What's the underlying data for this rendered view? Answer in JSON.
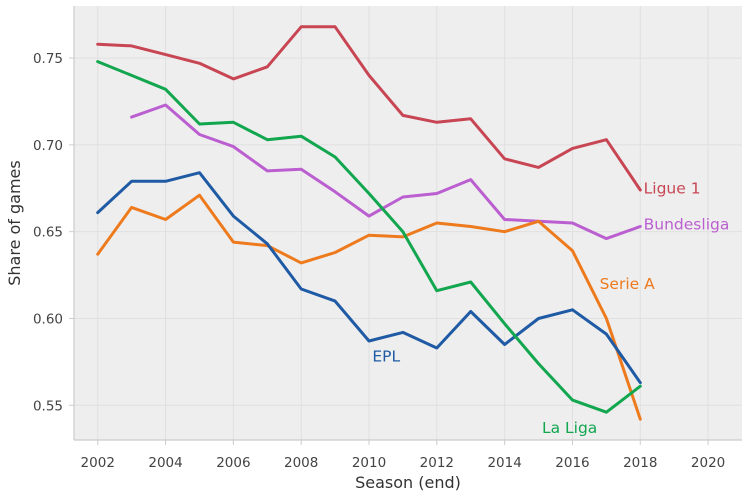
{
  "chart_data": {
    "type": "line",
    "xlabel": "Season (end)",
    "ylabel": "Share of games",
    "xlim": [
      2001.3,
      2021
    ],
    "ylim": [
      0.53,
      0.78
    ],
    "x_ticks": [
      2002,
      2004,
      2006,
      2008,
      2010,
      2012,
      2014,
      2016,
      2018,
      2020
    ],
    "y_ticks": [
      0.55,
      0.6,
      0.65,
      0.7,
      0.75
    ],
    "grid": true,
    "legend": "none (series labelled inline)",
    "colors": {
      "Ligue 1": "#c84654",
      "Bundesliga": "#bb5fd0",
      "Serie A": "#ee7a1e",
      "EPL": "#1f5aa4",
      "La Liga": "#12a64f",
      "background": "#eeeeee",
      "grid": "#e0e0e0"
    },
    "series": [
      {
        "name": "Ligue 1",
        "x": [
          2002,
          2003,
          2004,
          2005,
          2006,
          2007,
          2008,
          2009,
          2010,
          2011,
          2012,
          2013,
          2014,
          2015,
          2016,
          2017,
          2018
        ],
        "values": [
          0.758,
          0.757,
          0.752,
          0.747,
          0.738,
          0.745,
          0.768,
          0.768,
          0.74,
          0.717,
          0.713,
          0.715,
          0.692,
          0.687,
          0.698,
          0.703,
          0.674
        ],
        "label": "Ligue 1",
        "label_at": [
          2018.1,
          0.675
        ]
      },
      {
        "name": "Bundesliga",
        "x": [
          2003,
          2004,
          2005,
          2006,
          2007,
          2008,
          2009,
          2010,
          2011,
          2012,
          2013,
          2014,
          2015,
          2016,
          2017,
          2018
        ],
        "values": [
          0.716,
          0.723,
          0.706,
          0.699,
          0.685,
          0.686,
          0.673,
          0.659,
          0.67,
          0.672,
          0.68,
          0.657,
          0.656,
          0.655,
          0.646,
          0.653
        ],
        "label": "Bundesliga",
        "label_at": [
          2018.1,
          0.654
        ]
      },
      {
        "name": "Serie A",
        "x": [
          2002,
          2003,
          2004,
          2005,
          2006,
          2007,
          2008,
          2009,
          2010,
          2011,
          2012,
          2013,
          2014,
          2015,
          2016,
          2017,
          2018
        ],
        "values": [
          0.637,
          0.664,
          0.657,
          0.671,
          0.644,
          0.642,
          0.632,
          0.638,
          0.648,
          0.647,
          0.655,
          0.653,
          0.65,
          0.656,
          0.639,
          0.6,
          0.542
        ],
        "label": "Serie A",
        "label_at": [
          2016.8,
          0.62
        ]
      },
      {
        "name": "EPL",
        "x": [
          2002,
          2003,
          2004,
          2005,
          2006,
          2007,
          2008,
          2009,
          2010,
          2011,
          2012,
          2013,
          2014,
          2015,
          2016,
          2017,
          2018
        ],
        "values": [
          0.661,
          0.679,
          0.679,
          0.684,
          0.659,
          0.643,
          0.617,
          0.61,
          0.587,
          0.592,
          0.583,
          0.604,
          0.585,
          0.6,
          0.605,
          0.591,
          0.563
        ],
        "label": "EPL",
        "label_at": [
          2010.1,
          0.578
        ]
      },
      {
        "name": "La Liga",
        "x": [
          2002,
          2003,
          2004,
          2005,
          2006,
          2007,
          2008,
          2009,
          2010,
          2011,
          2012,
          2013,
          2014,
          2015,
          2016,
          2017,
          2018
        ],
        "values": [
          0.748,
          0.74,
          0.732,
          0.712,
          0.713,
          0.703,
          0.705,
          0.693,
          0.672,
          0.65,
          0.616,
          0.621,
          0.597,
          0.574,
          0.553,
          0.546,
          0.561
        ],
        "label": "La Liga",
        "label_at": [
          2015.1,
          0.537
        ]
      }
    ]
  }
}
